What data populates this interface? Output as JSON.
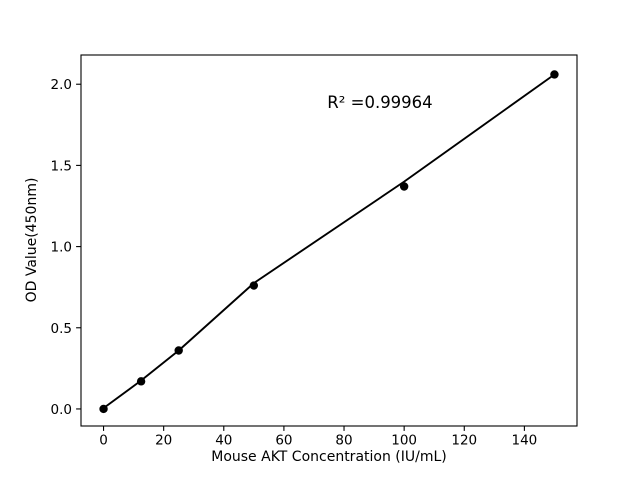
{
  "figure": {
    "background": "#ffffff"
  },
  "chart_data": {
    "type": "scatter",
    "title": "",
    "xlabel": "Mouse AKT Concentration (IU/mL)",
    "ylabel": "OD Value(450nm)",
    "annotation": "R² =0.99964",
    "x": [
      0,
      12.5,
      25,
      50,
      100,
      150
    ],
    "y": [
      0.0,
      0.17,
      0.36,
      0.76,
      1.37,
      2.06
    ],
    "fit_line": [
      [
        0,
        0.005
      ],
      [
        12.5,
        0.175
      ],
      [
        25,
        0.36
      ],
      [
        50,
        0.775
      ],
      [
        100,
        1.4
      ],
      [
        150,
        2.06
      ]
    ],
    "xlim": [
      -7.5,
      157.5
    ],
    "ylim": [
      -0.105,
      2.18
    ],
    "xticks": [
      0,
      20,
      40,
      60,
      80,
      100,
      120,
      140
    ],
    "yticks": [
      0.0,
      0.5,
      1.0,
      1.5,
      2.0
    ],
    "grid": false,
    "legend": null,
    "colors": {
      "line": "#000000",
      "marker": "#000000",
      "text": "#000000",
      "background": "#ffffff"
    },
    "marker": {
      "shape": "circle",
      "radius_px": 4.2
    }
  }
}
